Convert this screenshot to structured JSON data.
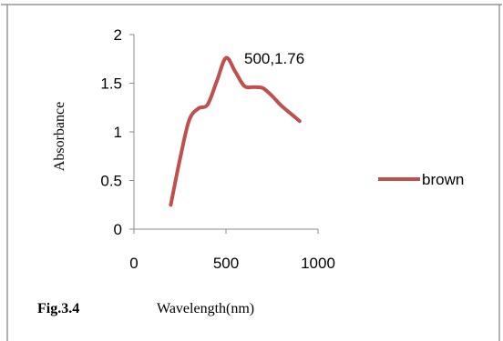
{
  "chart_data": {
    "type": "line",
    "title": "",
    "xlabel": "Wavelength(nm)",
    "ylabel": "Absorbance",
    "caption": "Fig.3.4",
    "xlim": [
      0,
      1000
    ],
    "ylim": [
      0,
      2
    ],
    "x_ticks": [
      "0",
      "500",
      "1000"
    ],
    "y_ticks": [
      "0",
      "0.5",
      "1",
      "1.5",
      "2"
    ],
    "grid": false,
    "legend_position": "right",
    "series": [
      {
        "name": "brown",
        "color": "#C0504D",
        "x": [
          200,
          250,
          300,
          350,
          400,
          450,
          500,
          550,
          600,
          650,
          700,
          750,
          800,
          850,
          900
        ],
        "y": [
          0.25,
          0.72,
          1.12,
          1.24,
          1.28,
          1.52,
          1.76,
          1.62,
          1.47,
          1.46,
          1.45,
          1.37,
          1.27,
          1.19,
          1.11
        ]
      }
    ],
    "annotations": [
      {
        "text": "500,1.76",
        "x": 500,
        "y": 1.76
      }
    ]
  }
}
